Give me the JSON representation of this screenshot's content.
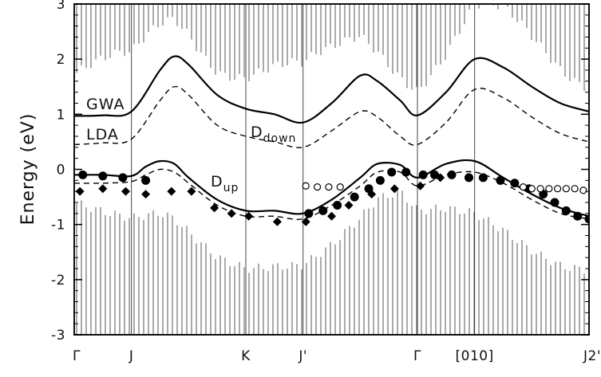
{
  "chart_data": {
    "type": "line",
    "title": "",
    "xlabel": "",
    "ylabel": "Energy (eV)",
    "ylim": [
      -3,
      3
    ],
    "yticks": [
      -3,
      -2,
      -1,
      0,
      1,
      2,
      3
    ],
    "grid": false,
    "kpoint_labels": [
      "Γ",
      "J",
      "K",
      "J'",
      "Γ",
      "[010]",
      "J2'"
    ],
    "kpoint_positions": [
      0,
      1,
      3,
      4,
      6,
      7,
      8
    ],
    "xlim": [
      0,
      9
    ],
    "curve_labels": {
      "gwa": "GWA",
      "lda": "LDA",
      "ddown_main": "D",
      "ddown_sub": "down",
      "dup_main": "D",
      "dup_sub": "up"
    },
    "series": [
      {
        "name": "GWA",
        "role": "Ddown band",
        "style": "solid",
        "x": [
          0,
          0.5,
          1,
          1.5,
          1.75,
          2,
          2.5,
          3,
          3.5,
          4,
          4.5,
          5,
          5.3,
          5.7,
          6,
          6.5,
          7,
          7.5,
          8,
          8.5,
          9
        ],
        "y": [
          0.97,
          0.98,
          1.05,
          1.8,
          2.05,
          1.9,
          1.35,
          1.1,
          1.0,
          0.85,
          1.2,
          1.7,
          1.6,
          1.25,
          0.98,
          1.4,
          2.0,
          1.85,
          1.5,
          1.2,
          1.05
        ]
      },
      {
        "name": "LDA",
        "role": "Ddown band",
        "style": "dashed",
        "x": [
          0,
          0.5,
          1,
          1.5,
          1.75,
          2,
          2.5,
          3,
          3.5,
          4,
          4.5,
          5,
          5.3,
          5.7,
          6,
          6.5,
          7,
          7.5,
          8,
          8.5,
          9
        ],
        "y": [
          0.45,
          0.48,
          0.55,
          1.25,
          1.5,
          1.35,
          0.8,
          0.6,
          0.5,
          0.4,
          0.7,
          1.05,
          0.95,
          0.6,
          0.45,
          0.85,
          1.45,
          1.3,
          0.95,
          0.65,
          0.5
        ]
      },
      {
        "name": "GWA",
        "role": "Dup band",
        "style": "solid",
        "x": [
          0,
          0.5,
          1,
          1.25,
          1.5,
          1.75,
          2,
          2.5,
          3,
          3.5,
          4,
          4.5,
          5,
          5.3,
          5.7,
          6,
          6.5,
          7,
          7.5,
          8,
          8.5,
          9
        ],
        "y": [
          -0.1,
          -0.1,
          -0.12,
          0.05,
          0.15,
          0.1,
          -0.15,
          -0.55,
          -0.75,
          -0.75,
          -0.8,
          -0.55,
          -0.15,
          0.1,
          0.08,
          -0.15,
          0.1,
          0.15,
          -0.15,
          -0.45,
          -0.7,
          -0.85
        ]
      },
      {
        "name": "LDA",
        "role": "Dup band",
        "style": "dashed",
        "x": [
          0,
          0.5,
          1,
          1.25,
          1.5,
          1.75,
          2,
          2.5,
          3,
          3.5,
          4,
          4.5,
          5,
          5.3,
          5.7,
          6,
          6.5,
          7,
          7.5,
          8,
          8.5,
          9
        ],
        "y": [
          -0.25,
          -0.25,
          -0.22,
          -0.1,
          0.0,
          -0.05,
          -0.25,
          -0.65,
          -0.85,
          -0.85,
          -0.9,
          -0.65,
          -0.3,
          -0.05,
          -0.05,
          -0.3,
          -0.1,
          -0.05,
          -0.25,
          -0.55,
          -0.8,
          -0.9
        ]
      },
      {
        "name": "exp. filled circles",
        "style": "marker",
        "marker": "circle-filled",
        "x": [
          0.15,
          0.5,
          0.85,
          1.25,
          4.1,
          4.35,
          4.6,
          4.9,
          5.15,
          5.35,
          5.55,
          5.8,
          6.1,
          6.3,
          6.6,
          6.9,
          7.15,
          7.45,
          7.7,
          7.95,
          8.2,
          8.4,
          8.6,
          8.8,
          9.0
        ],
        "y": [
          -0.1,
          -0.12,
          -0.15,
          -0.2,
          -0.8,
          -0.75,
          -0.65,
          -0.5,
          -0.35,
          -0.2,
          -0.05,
          -0.05,
          -0.1,
          -0.1,
          -0.1,
          -0.15,
          -0.15,
          -0.2,
          -0.25,
          -0.35,
          -0.45,
          -0.6,
          -0.75,
          -0.85,
          -0.9
        ]
      },
      {
        "name": "exp. filled diamonds",
        "style": "marker",
        "marker": "diamond-filled",
        "x": [
          0.1,
          0.5,
          0.9,
          1.25,
          1.7,
          2.05,
          2.45,
          2.75,
          3.05,
          3.55,
          4.05,
          4.5,
          4.8,
          5.2,
          5.6,
          6.05,
          6.4
        ],
        "y": [
          -0.4,
          -0.35,
          -0.4,
          -0.45,
          -0.4,
          -0.4,
          -0.7,
          -0.8,
          -0.85,
          -0.95,
          -0.95,
          -0.85,
          -0.65,
          -0.45,
          -0.35,
          -0.3,
          -0.15
        ]
      },
      {
        "name": "exp. open circles",
        "style": "marker",
        "marker": "circle-open",
        "x": [
          4.05,
          4.25,
          4.45,
          4.65,
          7.85,
          8.0,
          8.15,
          8.3,
          8.45,
          8.6,
          8.75,
          8.9
        ],
        "y": [
          -0.3,
          -0.32,
          -0.32,
          -0.32,
          -0.32,
          -0.35,
          -0.35,
          -0.35,
          -0.35,
          -0.35,
          -0.35,
          -0.38
        ]
      }
    ]
  }
}
